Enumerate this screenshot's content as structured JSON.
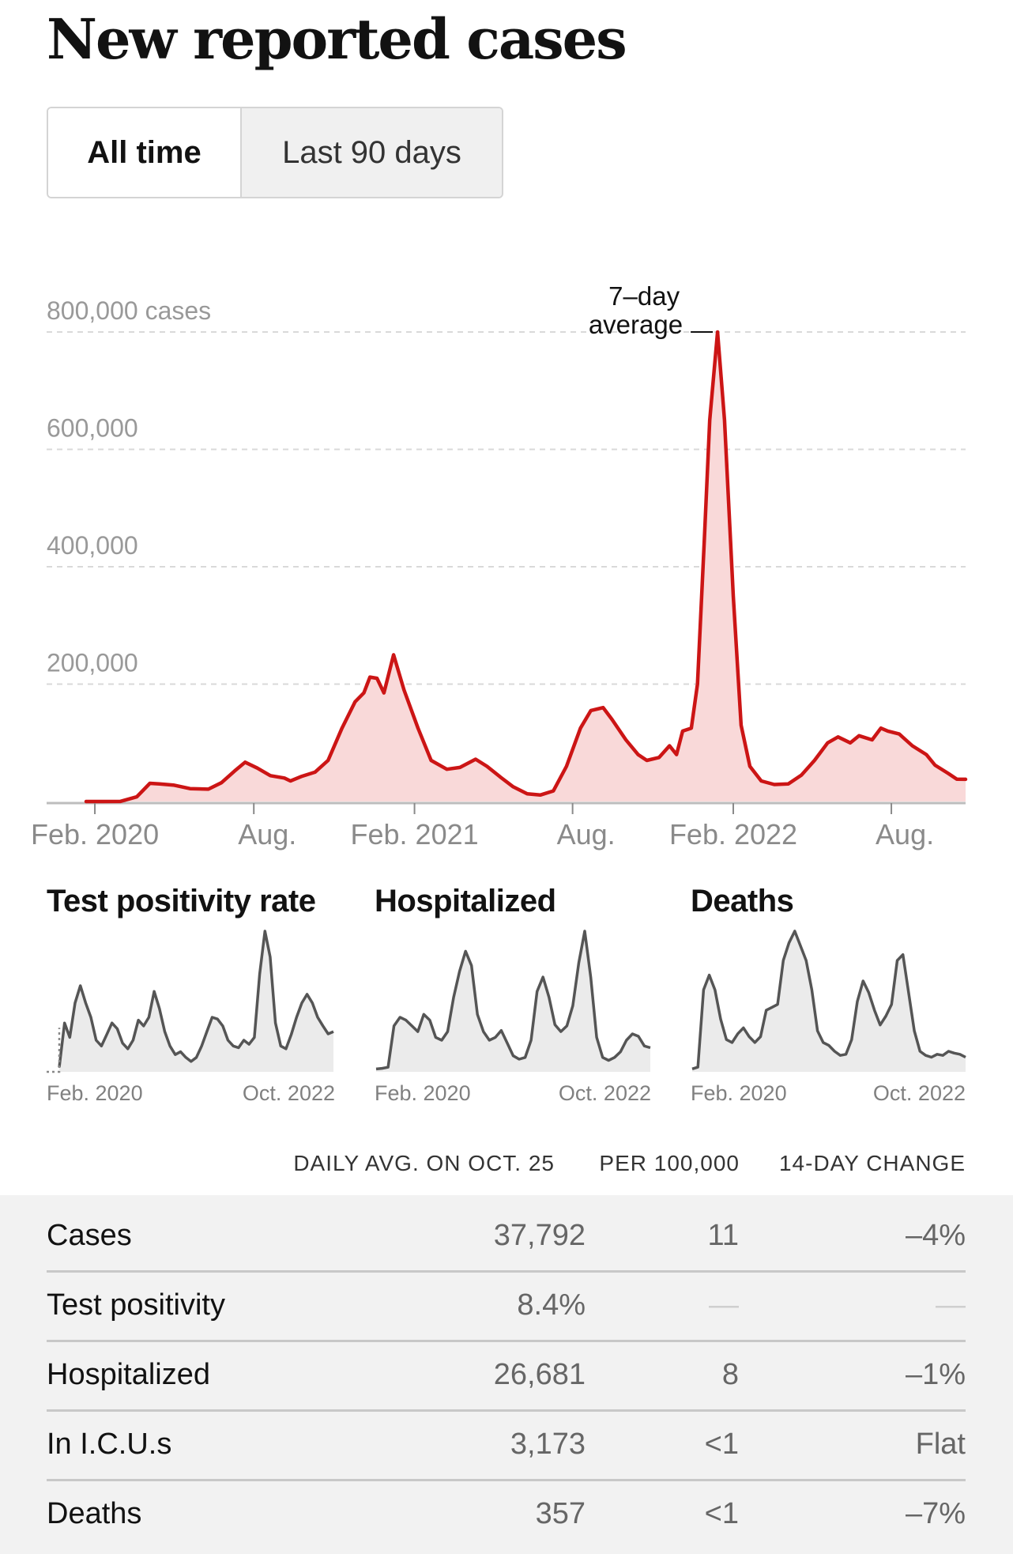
{
  "title": "New reported cases",
  "toggle": {
    "options": [
      "All time",
      "Last 90 days"
    ],
    "selected": "All time"
  },
  "colors": {
    "case_line": "#cc1515",
    "case_fill": "#f9d9d9",
    "small_line": "#555555",
    "small_fill": "#ebebeb",
    "grid": "#d9d9d9",
    "table_bg": "#f2f2f2"
  },
  "chart_data": [
    {
      "type": "area",
      "title": "",
      "y_unit_label": "cases",
      "annotation": "7–day average",
      "annotation_lines": [
        "7–day",
        "average"
      ],
      "x_ticks": [
        "Feb. 2020",
        "Aug.",
        "Feb. 2021",
        "Aug.",
        "Feb. 2022",
        "Aug."
      ],
      "y_ticks": [
        200000,
        400000,
        600000,
        800000
      ],
      "y_tick_labels": [
        "200,000",
        "400,000",
        "600,000",
        "800,000 cases"
      ],
      "ylim": [
        0,
        800000
      ],
      "xlim": [
        "2020-01-22",
        "2022-10-25"
      ],
      "grid": true,
      "series": [
        {
          "values": [
            [
              "2020-01-22",
              0
            ],
            [
              "2020-03-01",
              200
            ],
            [
              "2020-03-20",
              8000
            ],
            [
              "2020-04-04",
              31000
            ],
            [
              "2020-04-15",
              30000
            ],
            [
              "2020-05-01",
              28000
            ],
            [
              "2020-05-20",
              22000
            ],
            [
              "2020-06-10",
              21000
            ],
            [
              "2020-06-25",
              32000
            ],
            [
              "2020-07-10",
              52000
            ],
            [
              "2020-07-22",
              67000
            ],
            [
              "2020-08-05",
              57000
            ],
            [
              "2020-08-20",
              44000
            ],
            [
              "2020-09-05",
              40000
            ],
            [
              "2020-09-12",
              35000
            ],
            [
              "2020-09-25",
              43000
            ],
            [
              "2020-10-10",
              50000
            ],
            [
              "2020-10-25",
              70000
            ],
            [
              "2020-11-10",
              125000
            ],
            [
              "2020-11-25",
              170000
            ],
            [
              "2020-12-05",
              185000
            ],
            [
              "2020-12-12",
              212000
            ],
            [
              "2020-12-20",
              210000
            ],
            [
              "2020-12-28",
              185000
            ],
            [
              "2021-01-08",
              250000
            ],
            [
              "2021-01-20",
              190000
            ],
            [
              "2021-02-05",
              125000
            ],
            [
              "2021-02-20",
              70000
            ],
            [
              "2021-03-10",
              55000
            ],
            [
              "2021-03-25",
              58000
            ],
            [
              "2021-04-12",
              72000
            ],
            [
              "2021-04-25",
              60000
            ],
            [
              "2021-05-10",
              42000
            ],
            [
              "2021-05-25",
              25000
            ],
            [
              "2021-06-10",
              13000
            ],
            [
              "2021-06-25",
              11000
            ],
            [
              "2021-07-10",
              18000
            ],
            [
              "2021-07-25",
              60000
            ],
            [
              "2021-08-10",
              125000
            ],
            [
              "2021-08-22",
              155000
            ],
            [
              "2021-09-05",
              160000
            ],
            [
              "2021-09-15",
              140000
            ],
            [
              "2021-10-01",
              105000
            ],
            [
              "2021-10-15",
              80000
            ],
            [
              "2021-10-25",
              70000
            ],
            [
              "2021-11-08",
              75000
            ],
            [
              "2021-11-20",
              95000
            ],
            [
              "2021-11-28",
              80000
            ],
            [
              "2021-12-05",
              120000
            ],
            [
              "2021-12-15",
              125000
            ],
            [
              "2021-12-22",
              200000
            ],
            [
              "2021-12-30",
              450000
            ],
            [
              "2022-01-05",
              650000
            ],
            [
              "2022-01-14",
              800000
            ],
            [
              "2022-01-22",
              650000
            ],
            [
              "2022-02-01",
              350000
            ],
            [
              "2022-02-10",
              130000
            ],
            [
              "2022-02-20",
              60000
            ],
            [
              "2022-03-05",
              35000
            ],
            [
              "2022-03-20",
              29000
            ],
            [
              "2022-04-05",
              30000
            ],
            [
              "2022-04-20",
              45000
            ],
            [
              "2022-05-05",
              70000
            ],
            [
              "2022-05-20",
              100000
            ],
            [
              "2022-06-01",
              110000
            ],
            [
              "2022-06-15",
              100000
            ],
            [
              "2022-06-25",
              112000
            ],
            [
              "2022-07-10",
              105000
            ],
            [
              "2022-07-20",
              125000
            ],
            [
              "2022-07-28",
              120000
            ],
            [
              "2022-08-10",
              115000
            ],
            [
              "2022-08-25",
              95000
            ],
            [
              "2022-09-10",
              80000
            ],
            [
              "2022-09-20",
              62000
            ],
            [
              "2022-10-05",
              48000
            ],
            [
              "2022-10-15",
              38000
            ],
            [
              "2022-10-25",
              37792
            ]
          ]
        }
      ]
    },
    {
      "type": "area",
      "title": "Test positivity rate",
      "x_ticks": [
        "Feb. 2020",
        "Oct. 2022"
      ],
      "series": [
        {
          "values": [
            8,
            85,
            60,
            120,
            150,
            120,
            95,
            55,
            45,
            65,
            85,
            75,
            50,
            40,
            55,
            90,
            80,
            95,
            140,
            110,
            70,
            45,
            30,
            35,
            25,
            18,
            25,
            45,
            70,
            95,
            92,
            80,
            55,
            45,
            42,
            55,
            48,
            60,
            170,
            245,
            200,
            85,
            45,
            40,
            65,
            95,
            120,
            135,
            120,
            95,
            80,
            66,
            70
          ]
        }
      ]
    },
    {
      "type": "area",
      "title": "Hospitalized",
      "x_ticks": [
        "Feb. 2020",
        "Oct. 2022"
      ],
      "series": [
        {
          "values": [
            5,
            6,
            8,
            80,
            95,
            90,
            80,
            70,
            100,
            90,
            60,
            55,
            70,
            130,
            175,
            210,
            185,
            100,
            70,
            55,
            60,
            72,
            50,
            28,
            22,
            25,
            55,
            140,
            165,
            130,
            82,
            70,
            80,
            115,
            190,
            245,
            165,
            60,
            25,
            20,
            25,
            35,
            55,
            66,
            62,
            45,
            42
          ]
        }
      ]
    },
    {
      "type": "area",
      "title": "Deaths",
      "x_ticks": [
        "Feb. 2020",
        "Oct. 2022"
      ],
      "series": [
        {
          "values": [
            5,
            8,
            140,
            165,
            140,
            90,
            55,
            50,
            65,
            75,
            60,
            50,
            60,
            105,
            110,
            115,
            190,
            220,
            240,
            215,
            190,
            140,
            70,
            50,
            45,
            35,
            28,
            30,
            55,
            120,
            155,
            135,
            105,
            80,
            95,
            115,
            190,
            200,
            135,
            70,
            35,
            28,
            25,
            30,
            28,
            35,
            32,
            30,
            25
          ]
        }
      ]
    }
  ],
  "small_labels": {
    "start": "Feb. 2020",
    "end": "Oct. 2022"
  },
  "table": {
    "headers": [
      "DAILY AVG. ON OCT. 25",
      "PER 100,000",
      "14-DAY CHANGE"
    ],
    "rows": [
      {
        "name": "Cases",
        "daily": "37,792",
        "per100k": "11",
        "change": "–4%"
      },
      {
        "name": "Test positivity",
        "daily": "8.4%",
        "per100k": "—",
        "change": "—"
      },
      {
        "name": "Hospitalized",
        "daily": "26,681",
        "per100k": "8",
        "change": "–1%"
      },
      {
        "name": "In I.C.U.s",
        "daily": "3,173",
        "per100k": "<1",
        "change": "Flat"
      },
      {
        "name": "Deaths",
        "daily": "357",
        "per100k": "<1",
        "change": "–7%"
      }
    ]
  }
}
